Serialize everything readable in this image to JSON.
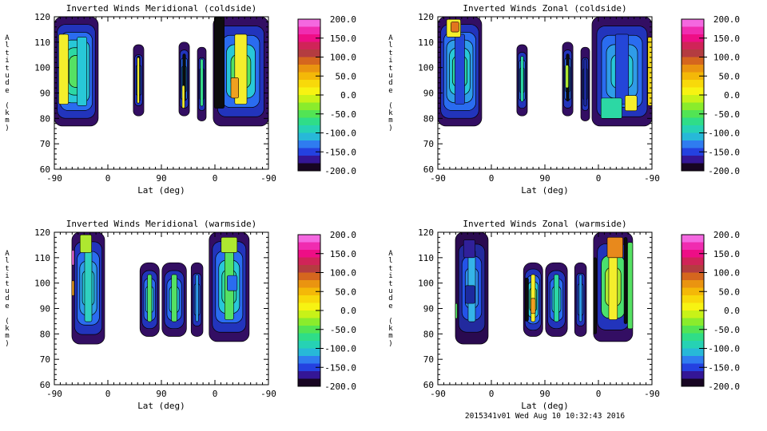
{
  "footer": {
    "text": "2015341v01 Wed Aug 10 10:32:43 2016"
  },
  "colorbar": {
    "min": -200,
    "max": 200,
    "labels": [
      "200.0",
      "150.0",
      "100.0",
      "50.0",
      "0.0",
      "-50.0",
      "-100.0",
      "-150.0",
      "-200.0"
    ],
    "tick_values": [
      150,
      100,
      50,
      0,
      -50,
      -100,
      -150
    ],
    "colors_top_to_bottom": [
      "#f468e0",
      "#f02cb0",
      "#ee0e86",
      "#d02458",
      "#b43c40",
      "#d5661e",
      "#ea9410",
      "#f4b808",
      "#f8d90a",
      "#f7f312",
      "#c8f218",
      "#8aec2c",
      "#52e454",
      "#2fdd88",
      "#26d2b4",
      "#27b8d8",
      "#2f7cf0",
      "#2441e0",
      "#341696",
      "#170522"
    ]
  },
  "chart_data": {
    "type": "filled_contour",
    "shared": {
      "xlabel": "Lat (deg)",
      "ylabel": "Altitude (km)",
      "x_tick_labels": [
        "-90",
        "0",
        "90",
        "0",
        "-90"
      ],
      "y_tick_labels": [
        "120",
        "110",
        "100",
        "90",
        "80",
        "70",
        "60"
      ],
      "y_range": [
        60,
        120
      ],
      "value_range": [
        -200,
        200
      ],
      "x_minor_divisions": 36,
      "y_minor_divisions": 30,
      "grid": false,
      "legend_position": "right-colorbar"
    },
    "panels": [
      {
        "id": "meridional-coldside",
        "title": "Inverted Winds Meridional (coldside)",
        "bands": [
          {
            "x0": 0.0,
            "x1": 0.205,
            "a0": 77,
            "a1": 120,
            "layers": [
              "#330e63",
              "#2234bc",
              "#2a6cf0",
              "#28c8d8",
              "#2cd8a4",
              "#55e163"
            ],
            "core": {
              "c": "#f4ee2c",
              "align": "left"
            },
            "accents": [
              {
                "fx0": 0.52,
                "fx1": 0.74,
                "a0": 85,
                "a1": 112,
                "c": "#28c8d8"
              }
            ]
          },
          {
            "x0": 0.369,
            "x1": 0.418,
            "a0": 81,
            "a1": 109,
            "layers": [
              "#330e63",
              "#2234bc",
              "#2a6cf0"
            ],
            "core": {
              "c": "#0d0d0d",
              "align": "center"
            },
            "accents": [
              {
                "fx0": 0.36,
                "fx1": 0.58,
                "a0": 86,
                "a1": 104,
                "c": "#f4ee2c"
              }
            ]
          },
          {
            "x0": 0.582,
            "x1": 0.631,
            "a0": 81,
            "a1": 110,
            "layers": [
              "#330e63",
              "#2234bc",
              "#2a6cf0",
              "#28c8d8"
            ],
            "core": {
              "c": "#0d0d0d",
              "align": "center"
            },
            "accents": [
              {
                "fx0": 0.3,
                "fx1": 0.55,
                "a0": 84,
                "a1": 93,
                "c": "#f4ee2c"
              }
            ]
          },
          {
            "x0": 0.668,
            "x1": 0.709,
            "a0": 79,
            "a1": 108,
            "layers": [
              "#330e63",
              "#2234bc",
              "#2a6cf0"
            ],
            "core": {
              "c": "#3ae08c",
              "align": "center"
            }
          },
          {
            "x0": 0.742,
            "x1": 1.0,
            "a0": 77,
            "a1": 120,
            "layers": [
              "#330e63",
              "#2234bc",
              "#2a6cf0",
              "#28c8d8",
              "#55e163"
            ],
            "core": {
              "c": "#f4ee2c",
              "align": "center"
            },
            "accents": [
              {
                "fx0": 0.02,
                "fx1": 0.2,
                "a0": 84,
                "a1": 120,
                "c": "#0d0d0d"
              },
              {
                "fx0": 0.32,
                "fx1": 0.46,
                "a0": 88,
                "a1": 96,
                "c": "#f0a020"
              }
            ]
          }
        ]
      },
      {
        "id": "zonal-coldside",
        "title": "Inverted Winds Zonal (coldside)",
        "bands": [
          {
            "x0": 0.0,
            "x1": 0.205,
            "a0": 77,
            "a1": 120,
            "layers": [
              "#330e63",
              "#2234bc",
              "#2a6cf0",
              "#2f9ce8",
              "#28c8d8",
              "#2cd8a4"
            ],
            "core": {
              "c": "#2446d8",
              "align": "center"
            },
            "accents": [
              {
                "fx0": 0.2,
                "fx1": 0.52,
                "a0": 112,
                "a1": 119,
                "c": "#f4ee2c"
              },
              {
                "fx0": 0.3,
                "fx1": 0.48,
                "a0": 114,
                "a1": 118,
                "c": "#e2751e"
              }
            ]
          },
          {
            "x0": 0.369,
            "x1": 0.418,
            "a0": 81,
            "a1": 109,
            "layers": [
              "#330e63",
              "#2234bc",
              "#2a6cf0",
              "#28c8d8"
            ],
            "core": {
              "c": "#2cd8a4",
              "align": "center"
            }
          },
          {
            "x0": 0.582,
            "x1": 0.631,
            "a0": 81,
            "a1": 110,
            "layers": [
              "#330e63",
              "#2234bc",
              "#2a6cf0",
              "#28c8d8"
            ],
            "core": {
              "c": "#0d0d0d",
              "align": "center"
            },
            "accents": [
              {
                "fx0": 0.28,
                "fx1": 0.58,
                "a0": 92,
                "a1": 101,
                "c": "#aee830"
              }
            ]
          },
          {
            "x0": 0.668,
            "x1": 0.709,
            "a0": 79,
            "a1": 108,
            "layers": [
              "#330e63",
              "#2234bc",
              "#2a6cf0"
            ],
            "core": {
              "c": "#1c2a9e",
              "align": "center"
            }
          },
          {
            "x0": 0.72,
            "x1": 1.0,
            "a0": 77,
            "a1": 120,
            "layers": [
              "#330e63",
              "#2234bc",
              "#2a6cf0",
              "#2f9ce8",
              "#28c8d8"
            ],
            "core": {
              "c": "#2446d8",
              "align": "center"
            },
            "accents": [
              {
                "fx0": 0.15,
                "fx1": 0.5,
                "a0": 80,
                "a1": 88,
                "c": "#2cd8a4"
              },
              {
                "fx0": 0.55,
                "fx1": 0.75,
                "a0": 83,
                "a1": 89,
                "c": "#f4ee2c"
              },
              {
                "fx0": 0.93,
                "fx1": 1.0,
                "a0": 85,
                "a1": 112,
                "c": "#f2d818"
              }
            ]
          }
        ]
      },
      {
        "id": "meridional-warmside",
        "title": "Inverted Winds Meridional (warmside)",
        "bands": [
          {
            "x0": 0.082,
            "x1": 0.235,
            "a0": 76,
            "a1": 120,
            "layers": [
              "#330e63",
              "#2234bc",
              "#2a6cf0",
              "#2f9ce8",
              "#28c8d8"
            ],
            "core": {
              "c": "#2fd0c0",
              "align": "center"
            },
            "accents": [
              {
                "fx0": 0.25,
                "fx1": 0.6,
                "a0": 112,
                "a1": 119,
                "c": "#aee830"
              },
              {
                "fx0": 0.0,
                "fx1": 0.07,
                "a0": 107,
                "a1": 113,
                "c": "#f06ae0"
              },
              {
                "fx0": 0.0,
                "fx1": 0.07,
                "a0": 95,
                "a1": 101,
                "c": "#f0a020"
              }
            ]
          },
          {
            "x0": 0.4,
            "x1": 0.49,
            "a0": 79,
            "a1": 108,
            "layers": [
              "#330e63",
              "#2234bc",
              "#2a6cf0",
              "#28c8d8"
            ],
            "core": {
              "c": "#55e163",
              "align": "center"
            }
          },
          {
            "x0": 0.503,
            "x1": 0.617,
            "a0": 79,
            "a1": 108,
            "layers": [
              "#330e63",
              "#2234bc",
              "#2a6cf0",
              "#28c8d8"
            ],
            "core": {
              "c": "#55e163",
              "align": "center"
            }
          },
          {
            "x0": 0.639,
            "x1": 0.694,
            "a0": 79,
            "a1": 108,
            "layers": [
              "#330e63",
              "#2234bc",
              "#2a6cf0"
            ],
            "core": {
              "c": "#2f9ce8",
              "align": "center"
            }
          },
          {
            "x0": 0.723,
            "x1": 0.91,
            "a0": 77,
            "a1": 120,
            "layers": [
              "#330e63",
              "#2234bc",
              "#2a6cf0",
              "#28c8d8",
              "#2cd8a4"
            ],
            "core": {
              "c": "#55e163",
              "align": "center"
            },
            "accents": [
              {
                "fx0": 0.3,
                "fx1": 0.7,
                "a0": 112,
                "a1": 118,
                "c": "#aee830"
              },
              {
                "fx0": 0.45,
                "fx1": 0.7,
                "a0": 97,
                "a1": 103,
                "c": "#2a6cf0"
              }
            ]
          }
        ]
      },
      {
        "id": "zonal-warmside",
        "title": "Inverted Winds Zonal (warmside)",
        "bands": [
          {
            "x0": 0.082,
            "x1": 0.235,
            "a0": 76,
            "a1": 120,
            "layers": [
              "#2a0a50",
              "#222a9e",
              "#2453e8",
              "#2f8cec"
            ],
            "core": {
              "c": "#35b4e8",
              "align": "center"
            },
            "accents": [
              {
                "fx0": 0.0,
                "fx1": 0.06,
                "a0": 86,
                "a1": 92,
                "c": "#55e163"
              },
              {
                "fx0": 0.3,
                "fx1": 0.6,
                "a0": 92,
                "a1": 99,
                "c": "#1c2a9e"
              },
              {
                "fx0": 0.25,
                "fx1": 0.6,
                "a0": 110,
                "a1": 117,
                "c": "#30209a"
              }
            ]
          },
          {
            "x0": 0.4,
            "x1": 0.49,
            "a0": 79,
            "a1": 108,
            "layers": [
              "#330e63",
              "#2234bc",
              "#2a6cf0",
              "#28c8d8",
              "#55e163"
            ],
            "core": {
              "c": "#f4ee2c",
              "align": "center"
            },
            "accents": [
              {
                "fx0": 0.08,
                "fx1": 0.26,
                "a0": 85,
                "a1": 102,
                "c": "#0d0d0d"
              },
              {
                "fx0": 0.38,
                "fx1": 0.62,
                "a0": 88,
                "a1": 94,
                "c": "#f0a020"
              }
            ]
          },
          {
            "x0": 0.503,
            "x1": 0.605,
            "a0": 79,
            "a1": 108,
            "layers": [
              "#330e63",
              "#2234bc",
              "#2a6cf0",
              "#28c8d8"
            ],
            "core": {
              "c": "#2cd8a4",
              "align": "center"
            }
          },
          {
            "x0": 0.639,
            "x1": 0.694,
            "a0": 79,
            "a1": 108,
            "layers": [
              "#330e63",
              "#2234bc",
              "#2a6cf0"
            ],
            "core": {
              "c": "#2f9ce8",
              "align": "center"
            }
          },
          {
            "x0": 0.727,
            "x1": 0.91,
            "a0": 77,
            "a1": 120,
            "layers": [
              "#330e63",
              "#2234bc",
              "#4ae06e",
              "#aee830"
            ],
            "core": {
              "c": "#f4ee2c",
              "align": "center"
            },
            "accents": [
              {
                "fx0": 0.35,
                "fx1": 0.75,
                "a0": 110,
                "a1": 118,
                "c": "#e8891c"
              },
              {
                "fx0": 0.0,
                "fx1": 0.08,
                "a0": 80,
                "a1": 110,
                "c": "#0d0d0d"
              },
              {
                "fx0": 0.78,
                "fx1": 0.86,
                "a0": 84,
                "a1": 118,
                "c": "#0d0d0d"
              },
              {
                "fx0": 0.87,
                "fx1": 1.0,
                "a0": 82,
                "a1": 116,
                "c": "#55e163"
              }
            ]
          }
        ]
      }
    ]
  }
}
